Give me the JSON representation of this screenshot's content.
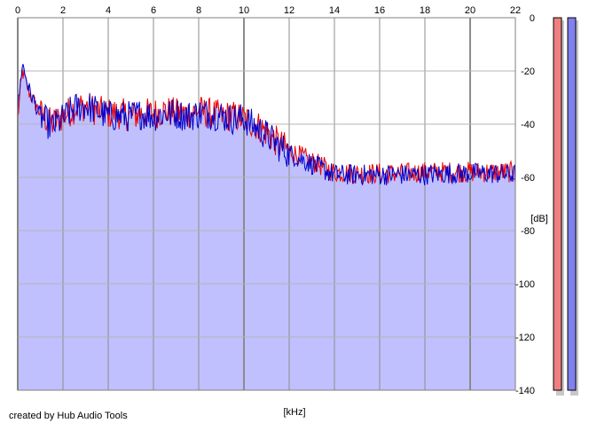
{
  "chart_data": {
    "type": "area",
    "xlabel": "[kHz]",
    "ylabel": "[dB]",
    "xlim": [
      0,
      22
    ],
    "ylim": [
      -140,
      0
    ],
    "x_ticks": [
      0,
      2,
      4,
      6,
      8,
      10,
      12,
      14,
      16,
      18,
      20,
      22
    ],
    "y_ticks": [
      0,
      -20,
      -40,
      -60,
      -80,
      -100,
      -120,
      -140
    ],
    "x_tick_labels": [
      "0",
      "2",
      "4",
      "6",
      "8",
      "10",
      "12",
      "14",
      "16",
      "18",
      "20",
      "22"
    ],
    "y_tick_labels": [
      "0",
      "-20",
      "-40",
      "-60",
      "-80",
      "-100",
      "-120",
      "-140"
    ],
    "grid": true,
    "series": [
      {
        "color": "#ee0000",
        "x": [
          0,
          0.2,
          0.5,
          1,
          1.5,
          2,
          2.5,
          3,
          3.5,
          4,
          4.5,
          5,
          5.5,
          6,
          6.5,
          7,
          7.5,
          8,
          8.5,
          9,
          9.5,
          10,
          10.5,
          11,
          11.5,
          12,
          12.5,
          13,
          13.5,
          14,
          15,
          16,
          17,
          18,
          19,
          20,
          21,
          22
        ],
        "values": [
          -38,
          -20,
          -28,
          -36,
          -40,
          -37,
          -34,
          -33,
          -35,
          -36,
          -36,
          -37,
          -36,
          -36,
          -35,
          -36,
          -36,
          -35,
          -36,
          -37,
          -37,
          -38,
          -40,
          -43,
          -47,
          -50,
          -52,
          -54,
          -56,
          -58,
          -58.5,
          -58.5,
          -58.5,
          -58,
          -58,
          -58,
          -58,
          -58
        ]
      },
      {
        "color": "#0000cc",
        "x": [
          0,
          0.2,
          0.5,
          1,
          1.5,
          2,
          2.5,
          3,
          3.5,
          4,
          4.5,
          5,
          5.5,
          6,
          6.5,
          7,
          7.5,
          8,
          8.5,
          9,
          9.5,
          10,
          10.5,
          11,
          11.5,
          12,
          12.5,
          13,
          13.5,
          14,
          15,
          16,
          17,
          18,
          19,
          20,
          21,
          22
        ],
        "values": [
          -35,
          -17,
          -27,
          -37,
          -41,
          -38,
          -34,
          -33,
          -35,
          -37,
          -37,
          -37,
          -36,
          -37,
          -36,
          -36,
          -37,
          -36,
          -36,
          -37,
          -38,
          -38,
          -41,
          -44,
          -48,
          -51,
          -53,
          -55,
          -57,
          -59,
          -59,
          -59,
          -59,
          -59,
          -58.5,
          -58.5,
          -58.5,
          -59
        ]
      }
    ],
    "meters": [
      {
        "color": "#f08080",
        "level": 1.0
      },
      {
        "color": "#8080f0",
        "level": 1.0
      }
    ]
  },
  "credit": "created by Hub Audio Tools"
}
